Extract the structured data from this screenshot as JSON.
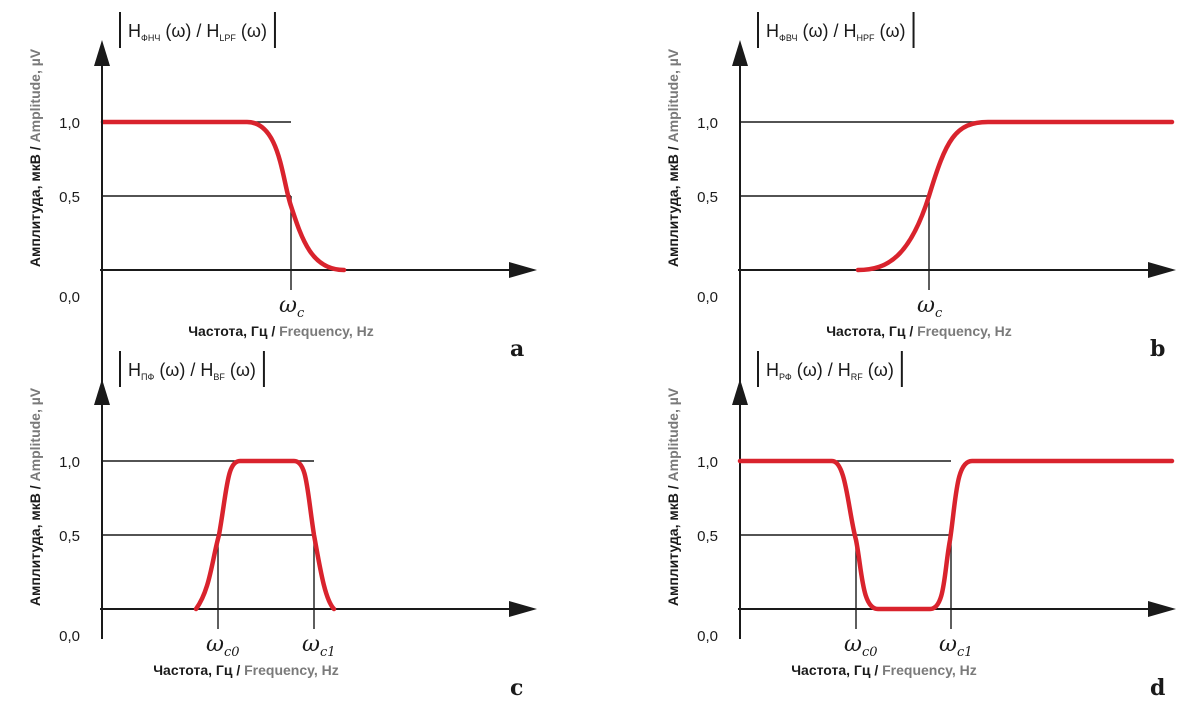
{
  "colors": {
    "curve": "#d9232d",
    "axis": "#1a1a1a",
    "english_label": "#7a7a7a"
  },
  "labels": {
    "y_ru": "Амплитуда, мкВ / ",
    "y_en": "Amplitude, µV",
    "x_ru": "Частота, Гц / ",
    "x_en": "Frequency, Hz",
    "zero": "0,0",
    "half": "0,5",
    "one": "1,0",
    "omega": "ω"
  },
  "panels": [
    {
      "id": "a",
      "letter": "a",
      "filter_type": "low-pass",
      "title": {
        "h1": "H",
        "s1": "ФНЧ",
        "mid": " (ω) / H",
        "s2": "LPF",
        "end": " (ω)"
      },
      "cutoffs": [
        {
          "label_sub": "c"
        }
      ]
    },
    {
      "id": "b",
      "letter": "b",
      "filter_type": "high-pass",
      "title": {
        "h1": "H",
        "s1": "ФВЧ",
        "mid": " (ω) / H",
        "s2": "HPF",
        "end": " (ω)"
      },
      "cutoffs": [
        {
          "label_sub": "c"
        }
      ]
    },
    {
      "id": "c",
      "letter": "c",
      "filter_type": "band-pass",
      "title": {
        "h1": "H",
        "s1": "ПФ",
        "mid": " (ω) / H",
        "s2": "BF",
        "end": " (ω)"
      },
      "cutoffs": [
        {
          "label_sub": "c0"
        },
        {
          "label_sub": "c1"
        }
      ]
    },
    {
      "id": "d",
      "letter": "d",
      "filter_type": "band-stop",
      "title": {
        "h1": "H",
        "s1": "РФ",
        "mid": " (ω) / H",
        "s2": "RF",
        "end": " (ω)"
      },
      "cutoffs": [
        {
          "label_sub": "c0"
        },
        {
          "label_sub": "c1"
        }
      ]
    }
  ]
}
